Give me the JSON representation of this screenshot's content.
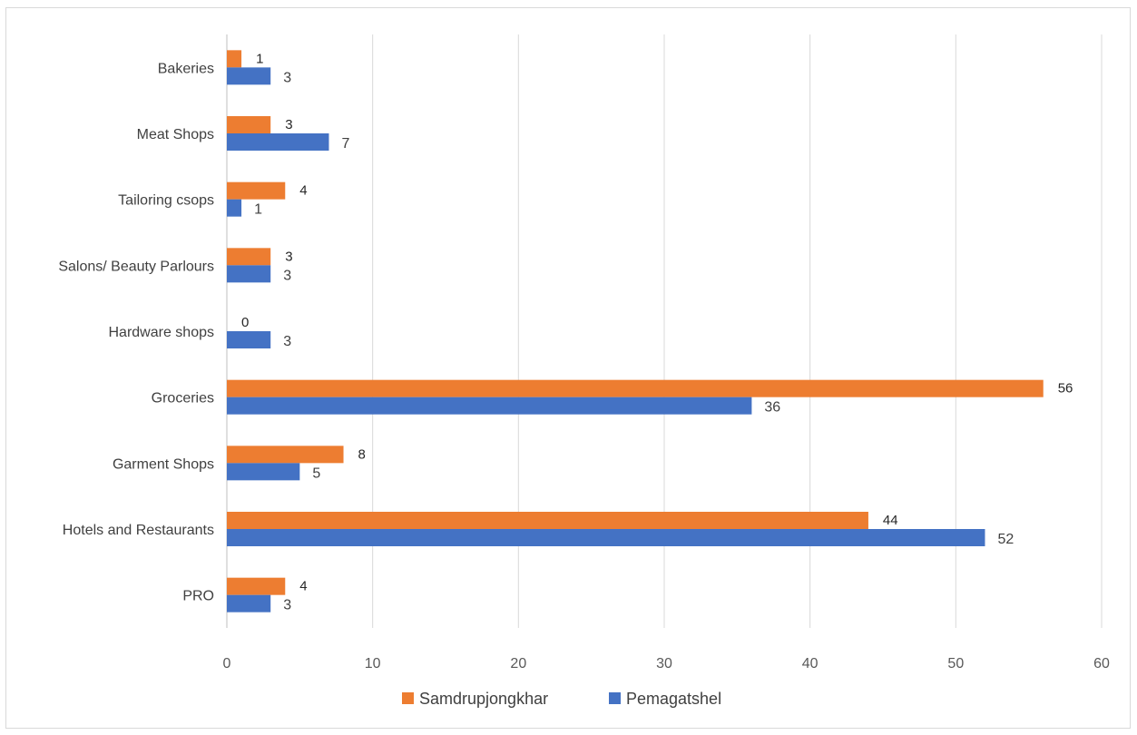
{
  "chart_data": {
    "type": "bar",
    "orientation": "horizontal",
    "categories": [
      "Bakeries",
      "Meat Shops",
      "Tailoring csops",
      "Salons/ Beauty Parlours",
      "Hardware shops",
      "Groceries",
      "Garment Shops",
      "Hotels and Restaurants",
      "PRO"
    ],
    "series": [
      {
        "name": "Samdrupjongkhar",
        "color": "#ED7D31",
        "values": [
          1,
          3,
          4,
          3,
          0,
          56,
          8,
          44,
          4
        ]
      },
      {
        "name": "Pemagatshel",
        "color": "#4472C4",
        "values": [
          3,
          7,
          1,
          3,
          3,
          36,
          5,
          52,
          3
        ]
      }
    ],
    "xlim": [
      0,
      60
    ],
    "xticks": [
      "0",
      "10",
      "20",
      "30",
      "40",
      "50",
      "60"
    ],
    "xtick_values": [
      0,
      10,
      20,
      30,
      40,
      50,
      60
    ],
    "grid": true,
    "gridline_color": "#d9d9d9",
    "legend_position": "bottom",
    "data_labels": true
  }
}
